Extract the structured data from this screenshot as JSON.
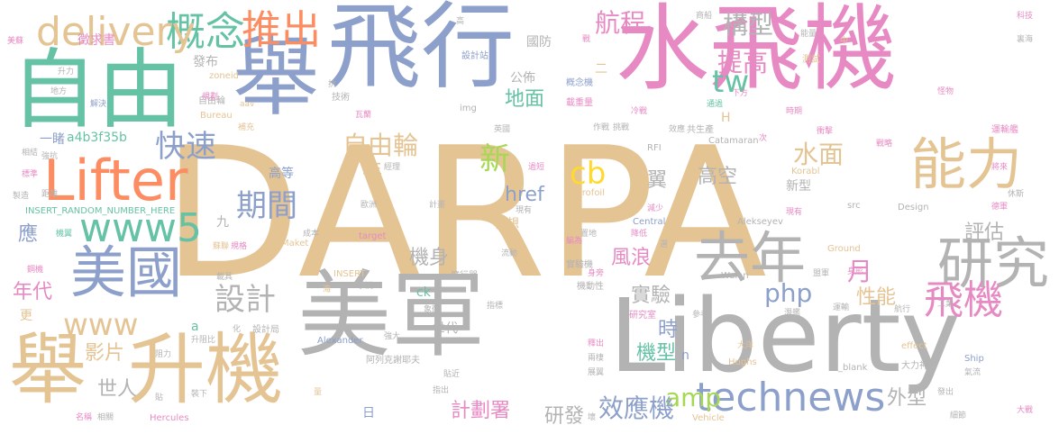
{
  "words": [
    {
      "text": "DARPA",
      "color": "#e5c494",
      "size": 1
    },
    {
      "text": "美軍",
      "color": "#b3b3b3",
      "size": 2
    },
    {
      "text": "Liberty",
      "color": "#b3b3b3",
      "size": 2
    },
    {
      "text": "水飛機",
      "color": "#e78ac3",
      "size": 2
    },
    {
      "text": "飛行",
      "color": "#8da0cb",
      "size": 2
    },
    {
      "text": "自由",
      "color": "#66c2a5",
      "size": 2
    },
    {
      "text": "舉",
      "color": "#8da0cb",
      "size": 2
    },
    {
      "text": "升機",
      "color": "#e5c494",
      "size": 2
    },
    {
      "text": "舉",
      "color": "#e5c494",
      "size": 2
    },
    {
      "text": "美國",
      "color": "#8da0cb",
      "size": 3
    },
    {
      "text": "Lifter",
      "color": "#fc8d62",
      "size": 3
    },
    {
      "text": "能力",
      "color": "#e5c494",
      "size": 3
    },
    {
      "text": "研究",
      "color": "#b3b3b3",
      "size": 3
    },
    {
      "text": "飛機",
      "color": "#e78ac3",
      "size": 3
    },
    {
      "text": "technews",
      "color": "#8da0cb",
      "size": 3
    },
    {
      "text": "www5",
      "color": "#66c2a5",
      "size": 3
    },
    {
      "text": "概念",
      "color": "#66c2a5",
      "size": 3
    },
    {
      "text": "推出",
      "color": "#fc8d62",
      "size": 3
    },
    {
      "text": "delivery",
      "color": "#e5c494",
      "size": 3
    },
    {
      "text": "去年",
      "color": "#b3b3b3",
      "size": 3
    },
    {
      "text": "www",
      "color": "#e5c494",
      "size": 4
    },
    {
      "text": "期間",
      "color": "#8da0cb",
      "size": 4
    },
    {
      "text": "設計",
      "color": "#b3b3b3",
      "size": 4
    },
    {
      "text": "快速",
      "color": "#8da0cb",
      "size": 4
    },
    {
      "text": "tw",
      "color": "#66c2a5",
      "size": 4
    },
    {
      "text": "新",
      "color": "#a6d854",
      "size": 4
    },
    {
      "text": "cb",
      "color": "#ffd92f",
      "size": 4
    },
    {
      "text": "php",
      "color": "#8da0cb",
      "size": 4
    },
    {
      "text": "amp",
      "color": "#a6d854",
      "size": 4
    },
    {
      "text": "自由輪",
      "color": "#e5c494",
      "size": 4
    },
    {
      "text": "構型",
      "color": "#b3b3b3",
      "size": 4
    },
    {
      "text": "提高",
      "color": "#e78ac3",
      "size": 4
    },
    {
      "text": "航程",
      "color": "#e78ac3",
      "size": 4
    },
    {
      "text": "水面",
      "color": "#e5c494",
      "size": 4
    },
    {
      "text": "月",
      "color": "#e78ac3",
      "size": 4
    },
    {
      "text": "效應機",
      "color": "#8da0cb",
      "size": 4
    },
    {
      "text": "應",
      "color": "#8da0cb",
      "size": 5
    },
    {
      "text": "年代",
      "color": "#e78ac3",
      "size": 5
    },
    {
      "text": "影片",
      "color": "#e5c494",
      "size": 5
    },
    {
      "text": "機身",
      "color": "#b3b3b3",
      "size": 5
    },
    {
      "text": "風浪",
      "color": "#e78ac3",
      "size": 5
    },
    {
      "text": "實驗",
      "color": "#b3b3b3",
      "size": 5
    },
    {
      "text": "機型",
      "color": "#66c2a5",
      "size": 5
    },
    {
      "text": "性能",
      "color": "#e5c494",
      "size": 5
    },
    {
      "text": "地面",
      "color": "#66c2a5",
      "size": 5
    },
    {
      "text": "高空",
      "color": "#b3b3b3",
      "size": 5
    },
    {
      "text": "時",
      "color": "#8da0cb",
      "size": 5
    },
    {
      "text": "計劃署",
      "color": "#e78ac3",
      "size": 5
    },
    {
      "text": "研發",
      "color": "#b3b3b3",
      "size": 5
    },
    {
      "text": "href",
      "color": "#8da0cb",
      "size": 5
    },
    {
      "text": "年",
      "color": "#e5c494",
      "size": 5
    },
    {
      "text": "翼",
      "color": "#b3b3b3",
      "size": 5
    },
    {
      "text": "世人",
      "color": "#b3b3b3",
      "size": 5
    },
    {
      "text": "外型",
      "color": "#b3b3b3",
      "size": 5
    },
    {
      "text": "評估",
      "color": "#b3b3b3",
      "size": 5
    },
    {
      "text": "徵求書",
      "color": "#e78ac3",
      "size": 6
    },
    {
      "text": "發布",
      "color": "#b3b3b3",
      "size": 6
    },
    {
      "text": "國防",
      "color": "#b3b3b3",
      "size": 6
    },
    {
      "text": "公佈",
      "color": "#b3b3b3",
      "size": 6
    },
    {
      "text": "一睹",
      "color": "#8da0cb",
      "size": 6
    },
    {
      "text": "a4b3f35b",
      "color": "#66c2a5",
      "size": 6
    },
    {
      "text": "高等",
      "color": "#8da0cb",
      "size": 6
    },
    {
      "text": "新型",
      "color": "#b3b3b3",
      "size": 6
    },
    {
      "text": "構想",
      "color": "#e5c494",
      "size": 6
    },
    {
      "text": "世代",
      "color": "#b3b3b3",
      "size": 6
    },
    {
      "text": "ck",
      "color": "#66c2a5",
      "size": 6
    },
    {
      "text": "更",
      "color": "#e5c494",
      "size": 6
    },
    {
      "text": "n",
      "color": "#8da0cb",
      "size": 6
    },
    {
      "text": "H",
      "color": "#e5c494",
      "size": 6
    },
    {
      "text": "九",
      "color": "#b3b3b3",
      "size": 6
    },
    {
      "text": "日",
      "color": "#8da0cb",
      "size": 6
    },
    {
      "text": "a",
      "color": "#66c2a5",
      "size": 6
    },
    {
      "text": "二",
      "color": "#e5c494",
      "size": 6
    },
    {
      "text": "自由輪",
      "color": "#b3b3b3",
      "size": 7
    },
    {
      "text": "img",
      "color": "#b3b3b3",
      "size": 7
    },
    {
      "text": "技術",
      "color": "#b3b3b3",
      "size": 7
    },
    {
      "text": "Bureau",
      "color": "#e5c494",
      "size": 7
    },
    {
      "text": "zoneid",
      "color": "#e5c494",
      "size": 7
    },
    {
      "text": "設計站",
      "color": "#8da0cb",
      "size": 7
    },
    {
      "text": "概念機",
      "color": "#8da0cb",
      "size": 7
    },
    {
      "text": "測試",
      "color": "#e5c494",
      "size": 7
    },
    {
      "text": "Catamaran",
      "color": "#b3b3b3",
      "size": 7
    },
    {
      "text": "Hydrofoil",
      "color": "#e5c494",
      "size": 7
    },
    {
      "text": "RFI",
      "color": "#b3b3b3",
      "size": 7
    },
    {
      "text": "Korabl",
      "color": "#e5c494",
      "size": 7
    },
    {
      "text": "Central",
      "color": "#8da0cb",
      "size": 7
    },
    {
      "text": "Alekseyev",
      "color": "#b3b3b3",
      "size": 7
    },
    {
      "text": "Design",
      "color": "#b3b3b3",
      "size": 7
    },
    {
      "text": "src",
      "color": "#b3b3b3",
      "size": 7
    },
    {
      "text": "INSERT_RANDOM_NUMBER_HERE",
      "color": "#66c2a5",
      "size": 7
    },
    {
      "text": "target",
      "color": "#e78ac3",
      "size": 7
    },
    {
      "text": "Maket",
      "color": "#e5c494",
      "size": 7
    },
    {
      "text": "INSERT",
      "color": "#e5c494",
      "size": 7
    },
    {
      "text": "Ground",
      "color": "#e5c494",
      "size": 7
    },
    {
      "text": "Walan",
      "color": "#b3b3b3",
      "size": 7
    },
    {
      "text": "Alexander",
      "color": "#8da0cb",
      "size": 7
    },
    {
      "text": "Hughs",
      "color": "#e5c494",
      "size": 7
    },
    {
      "text": "effect",
      "color": "#e5c494",
      "size": 7
    },
    {
      "text": "Ship",
      "color": "#8da0cb",
      "size": 7
    },
    {
      "text": "_blank",
      "color": "#b3b3b3",
      "size": 7
    },
    {
      "text": "Hercules",
      "color": "#e78ac3",
      "size": 7
    },
    {
      "text": "Vehicle",
      "color": "#e5c494",
      "size": 7
    },
    {
      "text": "阿列克謝耶夫",
      "color": "#b3b3b3",
      "size": 7
    },
    {
      "text": "飛行器",
      "color": "#b3b3b3",
      "size": 7
    },
    {
      "text": "實驗機",
      "color": "#b3b3b3",
      "size": 7
    },
    {
      "text": "研究室",
      "color": "#e78ac3",
      "size": 7
    },
    {
      "text": "設計局",
      "color": "#b3b3b3",
      "size": 7
    },
    {
      "text": "機動性",
      "color": "#b3b3b3",
      "size": 7
    },
    {
      "text": "大力神",
      "color": "#b3b3b3",
      "size": 7
    },
    {
      "text": "共生產",
      "color": "#b3b3b3",
      "size": 7
    },
    {
      "text": "載重量",
      "color": "#e78ac3",
      "size": 7
    },
    {
      "text": "運輸艦",
      "color": "#e78ac3",
      "size": 7
    },
    {
      "text": "科技",
      "color": "#e78ac3",
      "size": 8
    },
    {
      "text": "美蘇",
      "color": "#e78ac3",
      "size": 8
    },
    {
      "text": "升力",
      "color": "#b3b3b3",
      "size": 8
    },
    {
      "text": "地方",
      "color": "#b3b3b3",
      "size": 8
    },
    {
      "text": "解決",
      "color": "#8da0cb",
      "size": 8
    },
    {
      "text": "規劃",
      "color": "#e78ac3",
      "size": 8
    },
    {
      "text": "抗",
      "color": "#b3b3b3",
      "size": 8
    },
    {
      "text": "高",
      "color": "#b3b3b3",
      "size": 8
    },
    {
      "text": "戰",
      "color": "#e78ac3",
      "size": 8
    },
    {
      "text": "商船",
      "color": "#b3b3b3",
      "size": 8
    },
    {
      "text": "能量",
      "color": "#b3b3b3",
      "size": 8
    },
    {
      "text": "下方",
      "color": "#e78ac3",
      "size": 8
    },
    {
      "text": "通過",
      "color": "#66c2a5",
      "size": 8
    },
    {
      "text": "時期",
      "color": "#e78ac3",
      "size": 8
    },
    {
      "text": "怪物",
      "color": "#e78ac3",
      "size": 8
    },
    {
      "text": "裏海",
      "color": "#b3b3b3",
      "size": 8
    },
    {
      "text": "中",
      "color": "#e5c494",
      "size": 8
    },
    {
      "text": "補充",
      "color": "#e5c494",
      "size": 8
    },
    {
      "text": "瓦蘭",
      "color": "#e78ac3",
      "size": 8
    },
    {
      "text": "英國",
      "color": "#b3b3b3",
      "size": 8
    },
    {
      "text": "作戰",
      "color": "#b3b3b3",
      "size": 8
    },
    {
      "text": "挑戰",
      "color": "#b3b3b3",
      "size": 8
    },
    {
      "text": "冷戰",
      "color": "#e78ac3",
      "size": 8
    },
    {
      "text": "效應",
      "color": "#b3b3b3",
      "size": 8
    },
    {
      "text": "衝擊",
      "color": "#e78ac3",
      "size": 8
    },
    {
      "text": "次",
      "color": "#e78ac3",
      "size": 8
    },
    {
      "text": "戰略",
      "color": "#e78ac3",
      "size": 8
    },
    {
      "text": "將來",
      "color": "#e78ac3",
      "size": 8
    },
    {
      "text": "休斯",
      "color": "#b3b3b3",
      "size": 8
    },
    {
      "text": "德軍",
      "color": "#e78ac3",
      "size": 8
    },
    {
      "text": "相結",
      "color": "#b3b3b3",
      "size": 8
    },
    {
      "text": "強抗",
      "color": "#b3b3b3",
      "size": 8
    },
    {
      "text": "標準",
      "color": "#e78ac3",
      "size": 8
    },
    {
      "text": "距離",
      "color": "#b3b3b3",
      "size": 8
    },
    {
      "text": "製造",
      "color": "#b3b3b3",
      "size": 8
    },
    {
      "text": "機翼",
      "color": "#66c2a5",
      "size": 8
    },
    {
      "text": "鋼機",
      "color": "#e78ac3",
      "size": 8
    },
    {
      "text": "蘇聯",
      "color": "#e5c494",
      "size": 8
    },
    {
      "text": "規格",
      "color": "#e78ac3",
      "size": 8
    },
    {
      "text": "成本",
      "color": "#b3b3b3",
      "size": 8
    },
    {
      "text": "計畫",
      "color": "#b3b3b3",
      "size": 8
    },
    {
      "text": "歐洲",
      "color": "#b3b3b3",
      "size": 8
    },
    {
      "text": "經理",
      "color": "#b3b3b3",
      "size": 8
    },
    {
      "text": "過短",
      "color": "#e78ac3",
      "size": 8
    },
    {
      "text": "身形",
      "color": "#e78ac3",
      "size": 8
    },
    {
      "text": "現有",
      "color": "#e78ac3",
      "size": 8
    },
    {
      "text": "現有",
      "color": "#b3b3b3",
      "size": 8
    },
    {
      "text": "減少",
      "color": "#e78ac3",
      "size": 8
    },
    {
      "text": "降低",
      "color": "#e78ac3",
      "size": 8
    },
    {
      "text": "編為",
      "color": "#e78ac3",
      "size": 8
    },
    {
      "text": "選",
      "color": "#b3b3b3",
      "size": 8
    },
    {
      "text": "置地",
      "color": "#b3b3b3",
      "size": 8
    },
    {
      "text": "流動",
      "color": "#b3b3b3",
      "size": 8
    },
    {
      "text": "載具",
      "color": "#b3b3b3",
      "size": 8
    },
    {
      "text": "擊沉",
      "color": "#b3b3b3",
      "size": 8
    },
    {
      "text": "指標",
      "color": "#b3b3b3",
      "size": 8
    },
    {
      "text": "身旁",
      "color": "#e78ac3",
      "size": 8
    },
    {
      "text": "參考",
      "color": "#b3b3b3",
      "size": 8
    },
    {
      "text": "潛艦",
      "color": "#b3b3b3",
      "size": 8
    },
    {
      "text": "運輸",
      "color": "#b3b3b3",
      "size": 8
    },
    {
      "text": "航行",
      "color": "#b3b3b3",
      "size": 8
    },
    {
      "text": "工業",
      "color": "#b3b3b3",
      "size": 8
    },
    {
      "text": "盟軍",
      "color": "#b3b3b3",
      "size": 8
    },
    {
      "text": "海",
      "color": "#e5c494",
      "size": 8
    },
    {
      "text": "象徵",
      "color": "#b3b3b3",
      "size": 8
    },
    {
      "text": "強大",
      "color": "#b3b3b3",
      "size": 8
    },
    {
      "text": "釋出",
      "color": "#e78ac3",
      "size": 8
    },
    {
      "text": "兩棲",
      "color": "#b3b3b3",
      "size": 8
    },
    {
      "text": "貼近",
      "color": "#b3b3b3",
      "size": 8
    },
    {
      "text": "展翼",
      "color": "#b3b3b3",
      "size": 8
    },
    {
      "text": "大洋",
      "color": "#e5c494",
      "size": 8
    },
    {
      "text": "氣流",
      "color": "#b3b3b3",
      "size": 8
    },
    {
      "text": "升阻比",
      "color": "#b3b3b3",
      "size": 8
    },
    {
      "text": "化",
      "color": "#b3b3b3",
      "size": 8
    },
    {
      "text": "阻力",
      "color": "#b3b3b3",
      "size": 8
    },
    {
      "text": "貼",
      "color": "#b3b3b3",
      "size": 8
    },
    {
      "text": "裝下",
      "color": "#b3b3b3",
      "size": 8
    },
    {
      "text": "指出",
      "color": "#b3b3b3",
      "size": 8
    },
    {
      "text": "量",
      "color": "#e5c494",
      "size": 8
    },
    {
      "text": "壞",
      "color": "#b3b3b3",
      "size": 8
    },
    {
      "text": "名稱",
      "color": "#e78ac3",
      "size": 8
    },
    {
      "text": "相關",
      "color": "#b3b3b3",
      "size": 8
    },
    {
      "text": "發出",
      "color": "#b3b3b3",
      "size": 8
    },
    {
      "text": "細節",
      "color": "#b3b3b3",
      "size": 8
    },
    {
      "text": "大戰",
      "color": "#e78ac3",
      "size": 8
    },
    {
      "text": "aav",
      "color": "#e5c494",
      "size": 8
    }
  ]
}
